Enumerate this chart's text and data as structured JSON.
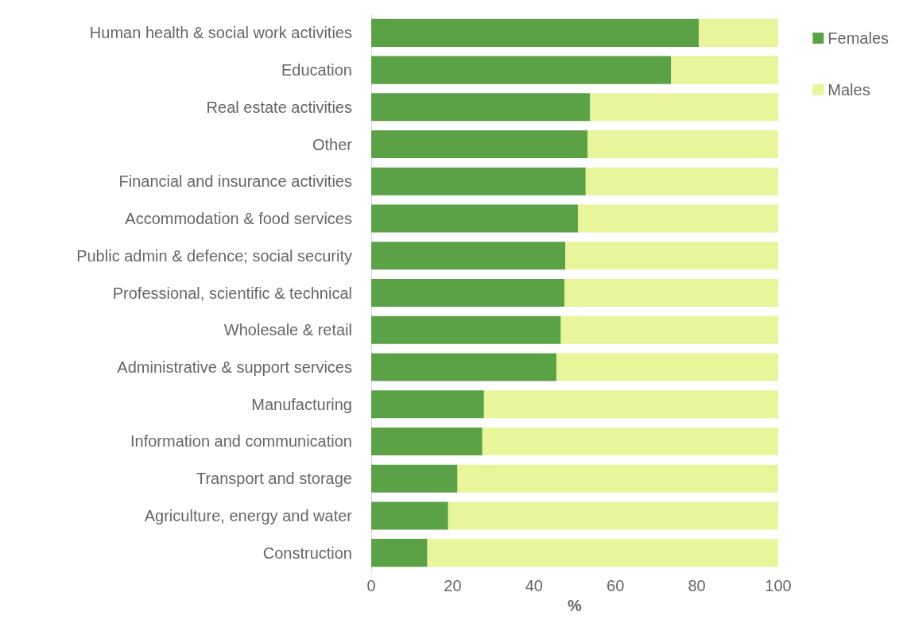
{
  "chart_data": {
    "type": "bar",
    "orientation": "horizontal",
    "stacked": true,
    "xlabel": "%",
    "categories": [
      "Human health & social work activities",
      "Education",
      "Real estate activities",
      "Other",
      "Financial and insurance activities",
      "Accommodation & food services",
      "Public admin & defence; social security",
      "Professional, scientific & technical",
      "Wholesale & retail",
      "Administrative & support services",
      "Manufacturing",
      "Information and communication",
      "Transport and storage",
      "Agriculture, energy and water",
      "Construction"
    ],
    "series": [
      {
        "name": "Females",
        "color": "#5aa245",
        "values": [
          80.5,
          73.7,
          53.8,
          53.2,
          52.7,
          50.8,
          47.7,
          47.5,
          46.6,
          45.5,
          27.7,
          27.3,
          21.2,
          18.9,
          13.8
        ]
      },
      {
        "name": "Males",
        "color": "#e8f59a",
        "values": [
          19.5,
          26.3,
          46.2,
          46.8,
          47.3,
          49.2,
          52.3,
          52.5,
          53.4,
          54.5,
          72.3,
          72.7,
          78.8,
          81.1,
          86.2
        ]
      }
    ],
    "xlim": [
      0,
      100
    ],
    "xticks": [
      0,
      20,
      40,
      60,
      80,
      100
    ],
    "grid": false,
    "legend": "top right"
  }
}
